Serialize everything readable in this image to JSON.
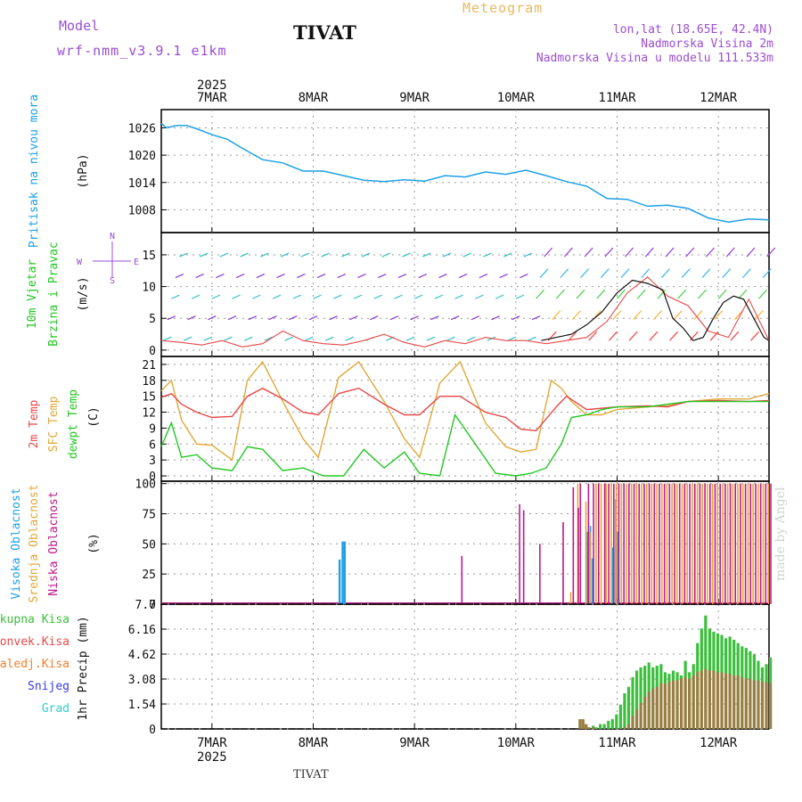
{
  "header": {
    "model_label": "Model",
    "model_value": "wrf-nmm_v3.9.1  e1km",
    "location": "TIVAT",
    "meteogram": "Meteogram",
    "coords": "lon,lat (18.65E, 42.4N)",
    "elevation": "Nadmorska Visina 2m",
    "model_elevation": "Nadmorska Visina u modelu 111.533m"
  },
  "footer": {
    "location": "TIVAT",
    "credit": "made by Angel"
  },
  "colors": {
    "pressure": "#1ea0e6",
    "wind_label": "#22c722",
    "temp2m": "#e84848",
    "sfc": "#e0a838",
    "dewpt": "#22c722",
    "high_cloud": "#1ea0e6",
    "mid_cloud": "#e0a838",
    "low_cloud": "#c0188a",
    "total_precip": "#3cbf3c",
    "conv_precip": "#e84848",
    "frozen": "#f08030",
    "snow": "#3a3ae0",
    "hail": "#33cccc"
  },
  "chart_data": [
    {
      "type": "line",
      "id": "pressure",
      "ylabel": "Pritisak na nivou mora",
      "unit": "(hPa)",
      "ylim": [
        1003,
        1030
      ],
      "yticks": [
        "1026",
        "1020",
        "1014",
        "1008"
      ],
      "ytick_values": [
        1026,
        1020,
        1014,
        1008
      ],
      "x_days": [
        0.0,
        0.05,
        0.15,
        0.25,
        0.35,
        0.5,
        0.65,
        0.8,
        1.0,
        1.2,
        1.4,
        1.6,
        1.8,
        2.0,
        2.2,
        2.4,
        2.6,
        2.8,
        3.0,
        3.2,
        3.4,
        3.6,
        3.8,
        4.0,
        4.2,
        4.4,
        4.6,
        4.8,
        5.0,
        5.2,
        5.4,
        5.6,
        5.8,
        6.0
      ],
      "values": [
        1027.0,
        1026.0,
        1026.5,
        1026.5,
        1025.8,
        1024.5,
        1023.5,
        1021.5,
        1019.0,
        1018.3,
        1016.5,
        1016.5,
        1015.5,
        1014.5,
        1014.2,
        1014.6,
        1014.3,
        1015.5,
        1015.2,
        1016.3,
        1015.8,
        1016.7,
        1015.5,
        1014.2,
        1013.2,
        1010.5,
        1010.3,
        1008.8,
        1009.0,
        1008.3,
        1006.2,
        1005.3,
        1006.0,
        1005.8
      ]
    },
    {
      "type": "line",
      "id": "wind",
      "ylabel": "10m Vjetar Brzina i Pravac",
      "unit": "(m/s)",
      "compass": {
        "n": "N",
        "w": "W",
        "e": "E",
        "s": "S"
      },
      "ylim": [
        -1,
        18.5
      ],
      "yticks": [
        "15",
        "10",
        "5",
        "0"
      ],
      "ytick_values": [
        15,
        10,
        5,
        0
      ],
      "series": [
        {
          "x_days": [
            0.0,
            0.2,
            0.4,
            0.6,
            0.8,
            1.0,
            1.2,
            1.4,
            1.6,
            1.8,
            2.0,
            2.2,
            2.4,
            2.6,
            2.8,
            3.0,
            3.2,
            3.4,
            3.6,
            3.8,
            4.0,
            4.2,
            4.4,
            4.6,
            4.8,
            5.0,
            5.2,
            5.4,
            5.6,
            5.8,
            6.0
          ],
          "values": [
            1.5,
            1.2,
            0.8,
            1.5,
            0.5,
            1.0,
            3.0,
            1.5,
            1.0,
            0.8,
            1.5,
            2.5,
            1.2,
            0.5,
            1.5,
            1.0,
            2.0,
            1.5,
            1.5,
            1.0,
            1.5,
            2.0,
            4.5,
            9.0,
            11.5,
            8.5,
            7.0,
            3.0,
            2.0,
            8.0,
            1.5
          ]
        },
        {
          "x_days": [
            3.75,
            3.9,
            4.05,
            4.2,
            4.35,
            4.5,
            4.65,
            4.8,
            4.95,
            5.05,
            5.15,
            5.25,
            5.35,
            5.45,
            5.55,
            5.65,
            5.75,
            5.85,
            5.95,
            6.0
          ],
          "values": [
            1.5,
            2.0,
            2.5,
            4.0,
            6.0,
            9.0,
            11.0,
            10.5,
            9.5,
            5.0,
            3.5,
            1.5,
            2.0,
            5.0,
            7.5,
            8.5,
            8.0,
            5.0,
            2.0,
            1.5
          ]
        }
      ]
    },
    {
      "type": "line",
      "id": "temperature",
      "ylabel": [
        "2m Temp",
        "SFC Temp",
        "dewpt Temp"
      ],
      "unit": "(C)",
      "ylim": [
        -1,
        22.5
      ],
      "yticks": [
        "21",
        "18",
        "15",
        "12",
        "9",
        "6",
        "3",
        "0"
      ],
      "ytick_values": [
        21,
        18,
        15,
        12,
        9,
        6,
        3,
        0
      ],
      "series": [
        {
          "x_days": [
            0.0,
            0.1,
            0.2,
            0.35,
            0.5,
            0.7,
            0.85,
            1.0,
            1.2,
            1.4,
            1.55,
            1.75,
            1.95,
            2.2,
            2.4,
            2.55,
            2.75,
            2.95,
            3.2,
            3.4,
            3.55,
            3.7,
            3.9,
            4.0,
            4.2,
            4.5,
            4.8,
            5.0,
            5.2,
            5.5,
            5.8,
            6.0
          ],
          "values": [
            14.8,
            15.5,
            13.5,
            12.0,
            11.0,
            11.2,
            15.0,
            16.5,
            14.5,
            12.0,
            11.5,
            15.5,
            16.5,
            13.5,
            11.5,
            11.5,
            15.0,
            15.0,
            12.0,
            11.0,
            8.8,
            8.5,
            13.0,
            15.0,
            12.5,
            13.0,
            13.2,
            13.0,
            14.0,
            14.2,
            14.0,
            14.2
          ]
        },
        {
          "x_days": [
            0.0,
            0.1,
            0.2,
            0.35,
            0.5,
            0.7,
            0.85,
            1.0,
            1.2,
            1.4,
            1.55,
            1.75,
            1.95,
            2.2,
            2.4,
            2.55,
            2.75,
            2.95,
            3.2,
            3.4,
            3.55,
            3.7,
            3.85,
            3.95,
            4.05,
            4.2,
            4.35,
            4.5,
            4.8,
            5.0,
            5.2,
            5.5,
            5.8,
            6.0
          ],
          "values": [
            16.0,
            18.0,
            10.5,
            6.0,
            5.8,
            3.0,
            18.0,
            21.5,
            14.0,
            7.0,
            3.5,
            18.5,
            21.5,
            14.0,
            7.0,
            3.5,
            17.5,
            21.5,
            10.0,
            5.5,
            4.5,
            5.0,
            18.0,
            16.5,
            14.0,
            11.5,
            11.5,
            12.5,
            13.0,
            13.2,
            14.0,
            14.5,
            14.5,
            15.5
          ]
        },
        {
          "x_days": [
            0.0,
            0.1,
            0.2,
            0.35,
            0.5,
            0.7,
            0.85,
            1.0,
            1.2,
            1.4,
            1.6,
            1.8,
            2.0,
            2.2,
            2.4,
            2.55,
            2.75,
            2.9,
            3.1,
            3.3,
            3.5,
            3.65,
            3.8,
            3.95,
            4.05,
            4.2,
            4.35,
            4.5,
            4.8,
            5.0,
            5.2,
            5.5,
            5.8,
            6.0
          ],
          "values": [
            5.5,
            10.0,
            3.5,
            4.0,
            1.5,
            1.0,
            5.5,
            5.0,
            1.0,
            1.5,
            0.0,
            0.0,
            5.0,
            1.5,
            4.5,
            0.5,
            0.0,
            11.5,
            6.0,
            0.5,
            0.0,
            0.5,
            1.5,
            6.0,
            11.0,
            11.5,
            12.5,
            13.0,
            13.0,
            13.5,
            14.0,
            14.0,
            14.0,
            14.0
          ]
        }
      ]
    },
    {
      "type": "bar",
      "id": "clouds",
      "ylabel": [
        "Visoka Oblacnost",
        "Srednja Oblacnost",
        "Niska Oblacnost"
      ],
      "unit": "(%)",
      "ylim": [
        0,
        102
      ],
      "yticks": [
        "100",
        "75",
        "50",
        "25",
        "0"
      ],
      "ytick_values": [
        100,
        75,
        50,
        25,
        0
      ],
      "series": [
        {
          "x_days": [
            1.75,
            1.78,
            1.8,
            4.2,
            4.23,
            4.25,
            4.45,
            4.48,
            4.5
          ],
          "values": [
            37,
            52,
            52,
            60,
            65,
            38,
            47,
            87,
            60
          ]
        },
        {
          "x_days": [
            4.03,
            4.1,
            4.18,
            4.22,
            4.28,
            4.33,
            4.38,
            4.43,
            4.48,
            4.53,
            4.58,
            4.63,
            4.68,
            4.73,
            4.78,
            4.83,
            4.88,
            4.93,
            4.98,
            5.03,
            5.08,
            5.13,
            5.18,
            5.23,
            5.28,
            5.33,
            5.38,
            5.43,
            5.48,
            5.53,
            5.58,
            5.63,
            5.68,
            5.73,
            5.78,
            5.83,
            5.88,
            5.93,
            5.98
          ],
          "values": [
            10,
            100,
            85,
            60,
            100,
            100,
            100,
            100,
            100,
            100,
            100,
            100,
            100,
            100,
            100,
            100,
            100,
            100,
            100,
            100,
            100,
            100,
            100,
            100,
            100,
            100,
            100,
            100,
            100,
            100,
            100,
            100,
            100,
            100,
            100,
            100,
            100,
            100,
            100
          ]
        },
        {
          "x_days": [
            2.95,
            3.52,
            3.56,
            3.72,
            3.95,
            4.1,
            4.05,
            4.12,
            4.2,
            4.25,
            4.3,
            4.36,
            4.4,
            4.45,
            4.5,
            4.55,
            4.6,
            4.65,
            4.7,
            4.75,
            4.8,
            4.85,
            4.9,
            4.95,
            5.0,
            5.05,
            5.1,
            5.15,
            5.2,
            5.25,
            5.3,
            5.35,
            5.4,
            5.45,
            5.5,
            5.55,
            5.6,
            5.65,
            5.7,
            5.75,
            5.8,
            5.85,
            5.9,
            5.95,
            6.0
          ],
          "values": [
            40,
            83,
            78,
            50,
            68,
            80,
            97,
            100,
            100,
            100,
            100,
            100,
            100,
            100,
            100,
            100,
            100,
            100,
            100,
            100,
            100,
            100,
            100,
            100,
            100,
            100,
            100,
            100,
            100,
            100,
            100,
            100,
            100,
            100,
            100,
            100,
            100,
            100,
            100,
            100,
            100,
            100,
            100,
            100,
            100
          ]
        }
      ]
    },
    {
      "type": "bar",
      "id": "precip",
      "ylabel": "1hr Precip",
      "unit": "(mm)",
      "ylim": [
        0,
        7.7
      ],
      "yticks": [
        "7.7",
        "6.16",
        "4.62",
        "3.08",
        "1.54",
        "0"
      ],
      "ytick_values": [
        7.7,
        6.16,
        4.62,
        3.08,
        1.54,
        0
      ],
      "legend": [
        "Ukupna Kisa",
        "Konvek.Kisa",
        "Zaledj.Kisa",
        "Snijeg",
        "Grad"
      ],
      "x_days": [
        4.12,
        4.15,
        4.18,
        4.21,
        4.25,
        4.28,
        4.32,
        4.36,
        4.4,
        4.44,
        4.48,
        4.52,
        4.56,
        4.6,
        4.64,
        4.68,
        4.72,
        4.76,
        4.8,
        4.84,
        4.88,
        4.92,
        4.96,
        5.0,
        5.04,
        5.08,
        5.12,
        5.16,
        5.2,
        5.24,
        5.28,
        5.32,
        5.36,
        5.4,
        5.44,
        5.48,
        5.52,
        5.56,
        5.6,
        5.64,
        5.68,
        5.72,
        5.76,
        5.8,
        5.84,
        5.88,
        5.92,
        5.96,
        6.0
      ],
      "values": [
        0.6,
        0.6,
        0.3,
        0.1,
        0.2,
        0.1,
        0.3,
        0.3,
        0.5,
        0.6,
        0.9,
        1.5,
        2.2,
        2.6,
        3.2,
        3.6,
        3.8,
        3.9,
        4.1,
        3.8,
        3.9,
        4.0,
        3.5,
        3.4,
        3.6,
        3.5,
        3.3,
        4.2,
        3.5,
        4.0,
        5.3,
        6.2,
        7.0,
        6.2,
        6.0,
        5.9,
        5.8,
        5.6,
        5.7,
        5.5,
        5.3,
        5.1,
        5.0,
        4.8,
        4.6,
        4.2,
        3.8,
        4.0,
        4.4
      ],
      "conv_values": [
        0.6,
        0.6,
        0.3,
        0.1,
        0.1,
        0.0,
        0.0,
        0.0,
        0.0,
        0.0,
        0.0,
        0.0,
        0.1,
        0.3,
        0.8,
        1.2,
        1.6,
        2.0,
        2.3,
        2.5,
        2.6,
        2.8,
        2.8,
        2.9,
        3.0,
        3.0,
        3.1,
        3.2,
        3.1,
        3.3,
        3.5,
        3.6,
        3.7,
        3.6,
        3.6,
        3.5,
        3.5,
        3.4,
        3.4,
        3.3,
        3.3,
        3.2,
        3.1,
        3.1,
        3.0,
        3.0,
        2.9,
        2.9,
        2.8
      ]
    }
  ],
  "x_axis": {
    "top_labels": [
      "7MAR",
      "8MAR",
      "9MAR",
      "10MAR",
      "11MAR",
      "12MAR"
    ],
    "bottom_labels": [
      "7MAR",
      "8MAR",
      "9MAR",
      "10MAR",
      "11MAR",
      "12MAR"
    ],
    "year": "2025",
    "tick_days": [
      0.5,
      1.5,
      2.5,
      3.5,
      4.5,
      5.5
    ],
    "range_days": [
      0,
      6
    ]
  }
}
